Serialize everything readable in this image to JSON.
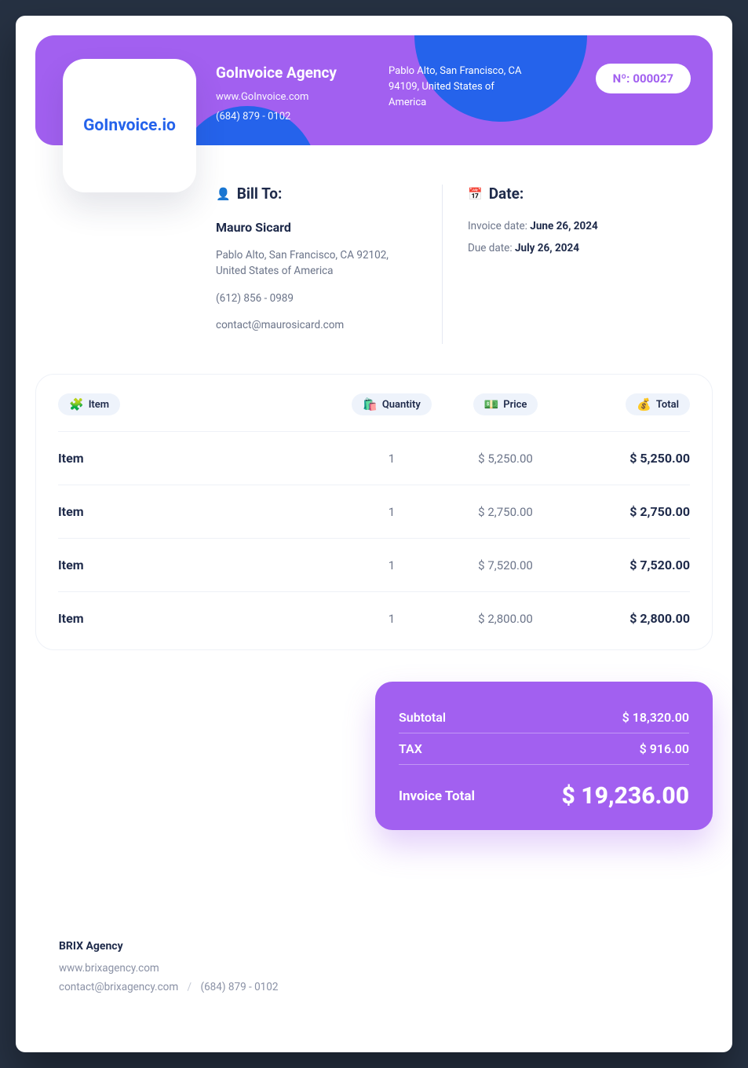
{
  "colors": {
    "header_bg": "#a260f0",
    "blob": "#2563eb",
    "text_dark": "#1e2a4a",
    "text_muted": "#6b7489",
    "border": "#eef1f7",
    "pill_bg": "#eef3fb",
    "page_bg": "#263142"
  },
  "logo": {
    "text": "GoInvoice.io"
  },
  "company": {
    "name": "GoInvoice Agency",
    "website": "www.GoInvoice.com",
    "phone": "(684) 879 - 0102",
    "address": "Pablo Alto, San Francisco, CA 94109, United States of America"
  },
  "invoice_number": {
    "prefix": "Nº: ",
    "value": "000027"
  },
  "bill_to": {
    "heading": "Bill To:",
    "name": "Mauro Sicard",
    "address": "Pablo Alto, San Francisco, CA 92102, United States of America",
    "phone": "(612) 856 - 0989",
    "email": "contact@maurosicard.com"
  },
  "dates": {
    "heading": "Date:",
    "invoice_label": "Invoice date: ",
    "invoice_value": "June 26, 2024",
    "due_label": "Due date: ",
    "due_value": "July 26, 2024"
  },
  "table": {
    "headers": {
      "item": "Item",
      "quantity": "Quantity",
      "price": "Price",
      "total": "Total"
    },
    "rows": [
      {
        "name": "Item",
        "qty": "1",
        "price": "$ 5,250.00",
        "total": "$ 5,250.00"
      },
      {
        "name": "Item",
        "qty": "1",
        "price": "$ 2,750.00",
        "total": "$ 2,750.00"
      },
      {
        "name": "Item",
        "qty": "1",
        "price": "$ 7,520.00",
        "total": "$ 7,520.00"
      },
      {
        "name": "Item",
        "qty": "1",
        "price": "$ 2,800.00",
        "total": "$ 2,800.00"
      }
    ]
  },
  "totals": {
    "subtotal_label": "Subtotal",
    "subtotal_value": "$ 18,320.00",
    "tax_label": "TAX",
    "tax_value": "$ 916.00",
    "final_label": "Invoice Total",
    "final_value": "$ 19,236.00"
  },
  "footer": {
    "agency": "BRIX Agency",
    "website": "www.brixagency.com",
    "email": "contact@brixagency.com",
    "phone": "(684) 879 - 0102"
  }
}
